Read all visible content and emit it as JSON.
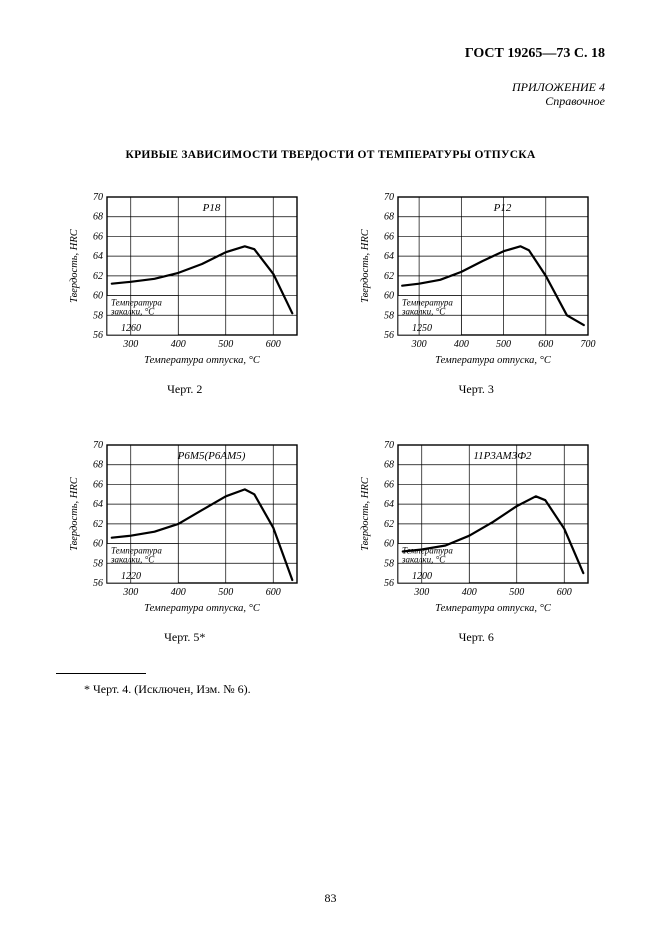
{
  "header": {
    "standard": "ГОСТ 19265—73 С. 18"
  },
  "appendix": {
    "line1": "ПРИЛОЖЕНИЕ 4",
    "line2": "Справочное"
  },
  "title": "КРИВЫЕ ЗАВИСИМОСТИ ТВЕРДОСТИ ОТ ТЕМПЕРАТУРЫ ОТПУСКА",
  "axis_labels": {
    "y": "Твердость, HRC",
    "x": "Температура отпуска, °С",
    "box_l1": "Температура",
    "box_l2": "закалки, °С"
  },
  "common": {
    "y_ticks": [
      56,
      58,
      60,
      62,
      64,
      66,
      68,
      70
    ],
    "line_color": "#000000",
    "bg_color": "#ffffff",
    "grid_color": "#000000",
    "line_width": 2.2,
    "axis_width": 1.4,
    "grid_width": 0.7,
    "tick_fontsize": 10,
    "label_fontsize": 10.5,
    "title_fontsize": 11
  },
  "charts": [
    {
      "id": "c1",
      "caption": "Черт. 2",
      "steel": "Р18",
      "quench_temp": "1260",
      "x_ticks": [
        300,
        400,
        500,
        600
      ],
      "xlim": [
        250,
        650
      ],
      "curve": [
        [
          260,
          61.2
        ],
        [
          300,
          61.4
        ],
        [
          350,
          61.7
        ],
        [
          400,
          62.3
        ],
        [
          450,
          63.2
        ],
        [
          500,
          64.4
        ],
        [
          540,
          65.0
        ],
        [
          560,
          64.7
        ],
        [
          600,
          62.2
        ],
        [
          640,
          58.2
        ]
      ]
    },
    {
      "id": "c2",
      "caption": "Черт. 3",
      "steel": "Р12",
      "quench_temp": "1250",
      "x_ticks": [
        300,
        400,
        500,
        600,
        700
      ],
      "xlim": [
        250,
        700
      ],
      "curve": [
        [
          260,
          61.0
        ],
        [
          300,
          61.2
        ],
        [
          350,
          61.6
        ],
        [
          400,
          62.4
        ],
        [
          450,
          63.5
        ],
        [
          500,
          64.5
        ],
        [
          540,
          65.0
        ],
        [
          560,
          64.6
        ],
        [
          600,
          62.0
        ],
        [
          650,
          58.0
        ],
        [
          690,
          57.0
        ]
      ]
    },
    {
      "id": "c3",
      "caption": "Черт. 5*",
      "steel": "Р6М5(Р6АМ5)",
      "quench_temp": "1220",
      "x_ticks": [
        300,
        400,
        500,
        600
      ],
      "xlim": [
        250,
        650
      ],
      "curve": [
        [
          260,
          60.6
        ],
        [
          300,
          60.8
        ],
        [
          350,
          61.2
        ],
        [
          400,
          62.0
        ],
        [
          450,
          63.4
        ],
        [
          500,
          64.8
        ],
        [
          540,
          65.5
        ],
        [
          560,
          65.0
        ],
        [
          600,
          61.6
        ],
        [
          640,
          56.3
        ]
      ]
    },
    {
      "id": "c4",
      "caption": "Черт. 6",
      "steel": "11Р3АМ3Ф2",
      "quench_temp": "1200",
      "x_ticks": [
        300,
        400,
        500,
        600
      ],
      "xlim": [
        250,
        650
      ],
      "curve": [
        [
          260,
          59.2
        ],
        [
          300,
          59.4
        ],
        [
          350,
          59.8
        ],
        [
          400,
          60.8
        ],
        [
          450,
          62.2
        ],
        [
          500,
          63.8
        ],
        [
          540,
          64.8
        ],
        [
          560,
          64.4
        ],
        [
          600,
          61.5
        ],
        [
          640,
          57.0
        ]
      ]
    }
  ],
  "footnote": "* Черт. 4. (Исключен, Изм. № 6).",
  "page_number": "83"
}
